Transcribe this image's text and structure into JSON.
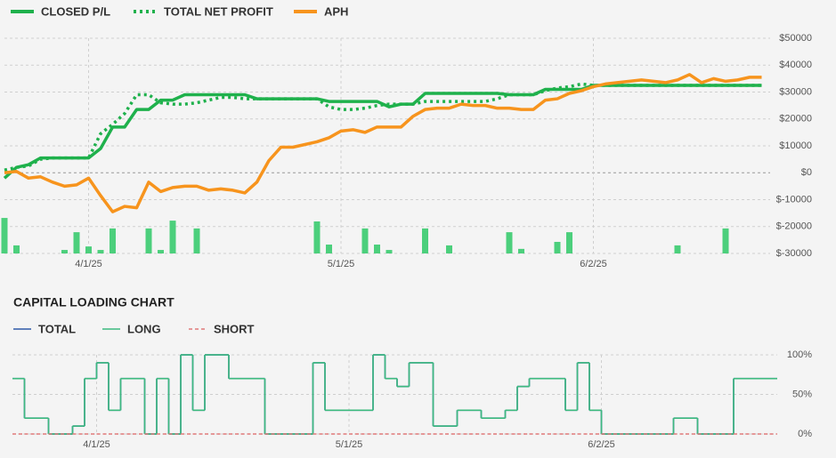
{
  "chart_data": [
    {
      "type": "line",
      "categories": [
        null,
        null,
        null,
        null,
        null,
        null,
        null,
        "4/1/25",
        null,
        null,
        null,
        null,
        null,
        null,
        null,
        null,
        null,
        null,
        null,
        null,
        null,
        null,
        null,
        null,
        null,
        null,
        null,
        null,
        "5/1/25",
        null,
        null,
        null,
        null,
        null,
        null,
        null,
        null,
        null,
        null,
        null,
        null,
        null,
        null,
        null,
        null,
        null,
        null,
        null,
        null,
        "6/2/25",
        null,
        null,
        null,
        null,
        null,
        null,
        null,
        null,
        null,
        null,
        null,
        null,
        null,
        null
      ],
      "series": [
        {
          "type": "bar",
          "color": "#4ccf7c",
          "values": [
            -16800,
            -27000,
            null,
            null,
            null,
            -28700,
            -22100,
            -27400,
            -28700,
            -20700,
            null,
            null,
            -20700,
            -28700,
            -17800,
            null,
            -20700,
            null,
            null,
            null,
            null,
            null,
            null,
            null,
            null,
            null,
            -18100,
            -26700,
            null,
            null,
            -20700,
            -26700,
            -28700,
            null,
            null,
            -20700,
            null,
            -27000,
            null,
            null,
            null,
            null,
            -22100,
            -28300,
            null,
            null,
            -25700,
            -22100,
            null,
            null,
            null,
            null,
            null,
            null,
            null,
            null,
            -27000,
            null,
            null,
            null,
            -20700,
            null,
            null,
            null
          ]
        },
        {
          "name": "CLOSED P/L",
          "color": "#1fb14c",
          "style": "solid",
          "values": [
            -2000,
            2000,
            3000,
            5500,
            5500,
            5500,
            5500,
            5500,
            9000,
            17000,
            17000,
            23500,
            23500,
            27000,
            27000,
            29000,
            29000,
            29000,
            29000,
            29000,
            29000,
            27500,
            27500,
            27500,
            27500,
            27500,
            27500,
            26500,
            26500,
            26500,
            26500,
            26500,
            24500,
            25500,
            25500,
            29500,
            29500,
            29500,
            29500,
            29500,
            29500,
            29500,
            29000,
            29000,
            29000,
            31000,
            31000,
            31000,
            31000,
            32500,
            32500,
            32500,
            32500,
            32500,
            32500,
            32500,
            32500,
            32500,
            32500,
            32500,
            32500,
            32500,
            32500,
            32500
          ]
        },
        {
          "name": "TOTAL NET PROFIT",
          "color": "#1fb14c",
          "style": "dotted",
          "values": [
            1000,
            2000,
            2500,
            5000,
            5500,
            5500,
            5500,
            5500,
            14500,
            18000,
            22000,
            29000,
            29000,
            26000,
            25500,
            25500,
            26000,
            27000,
            28000,
            28000,
            27500,
            27500,
            27500,
            27500,
            27500,
            27500,
            27500,
            24500,
            23500,
            23500,
            24000,
            25000,
            25500,
            25500,
            25500,
            26500,
            26500,
            26500,
            26500,
            26500,
            26500,
            27500,
            29000,
            29000,
            29000,
            30500,
            31500,
            32000,
            33000,
            32500,
            32500,
            32500,
            32500,
            32500,
            32500,
            32500,
            32500,
            32500,
            32500,
            32500,
            32500,
            32500,
            32500,
            32500
          ]
        },
        {
          "name": "APH",
          "color": "#f7941d",
          "style": "solid",
          "values": [
            0,
            500,
            -2000,
            -1500,
            -3500,
            -5000,
            -4500,
            -2000,
            -8500,
            -14500,
            -12500,
            -13000,
            -3500,
            -7000,
            -5500,
            -5000,
            -5000,
            -6500,
            -6000,
            -6500,
            -7500,
            -3500,
            4500,
            9500,
            9500,
            10500,
            11500,
            13000,
            15500,
            16000,
            15000,
            17000,
            17000,
            17000,
            21000,
            23500,
            24000,
            24000,
            25500,
            25000,
            25000,
            24000,
            24000,
            23500,
            23500,
            27000,
            27500,
            29500,
            30500,
            32000,
            33000,
            33500,
            34000,
            34500,
            34000,
            33500,
            34500,
            36500,
            33500,
            35000,
            34000,
            34500,
            35500,
            35500
          ]
        }
      ],
      "ylim": [
        -30000,
        50000
      ],
      "yticks": [
        {
          "value": 50000,
          "label": "$50000"
        },
        {
          "value": 40000,
          "label": "$40000"
        },
        {
          "value": 30000,
          "label": "$30000"
        },
        {
          "value": 20000,
          "label": "$20000"
        },
        {
          "value": 10000,
          "label": "$10000"
        },
        {
          "value": 0,
          "label": "$0"
        },
        {
          "value": -10000,
          "label": "$-10000"
        },
        {
          "value": -20000,
          "label": "$-20000"
        },
        {
          "value": -30000,
          "label": "$-30000"
        }
      ],
      "grid": true,
      "legend": "top"
    },
    {
      "type": "step",
      "title": "CAPITAL LOADING CHART",
      "categories": [
        null,
        null,
        null,
        null,
        null,
        null,
        null,
        "4/1/25",
        null,
        null,
        null,
        null,
        null,
        null,
        null,
        null,
        null,
        null,
        null,
        null,
        null,
        null,
        null,
        null,
        null,
        null,
        null,
        null,
        "5/1/25",
        null,
        null,
        null,
        null,
        null,
        null,
        null,
        null,
        null,
        null,
        null,
        null,
        null,
        null,
        null,
        null,
        null,
        null,
        null,
        null,
        "6/2/25",
        null,
        null,
        null,
        null,
        null,
        null,
        null,
        null,
        null,
        null,
        null,
        null,
        null,
        null
      ],
      "series": [
        {
          "name": "TOTAL",
          "color": "#2e5aa8",
          "style": "solid",
          "values": [
            70,
            20,
            20,
            0,
            0,
            10,
            70,
            90,
            30,
            70,
            70,
            0,
            70,
            0,
            100,
            30,
            100,
            100,
            70,
            70,
            70,
            0,
            0,
            0,
            0,
            90,
            30,
            30,
            30,
            30,
            100,
            70,
            60,
            90,
            90,
            10,
            10,
            30,
            30,
            20,
            20,
            30,
            60,
            70,
            70,
            70,
            30,
            90,
            30,
            0,
            0,
            0,
            0,
            0,
            0,
            20,
            20,
            0,
            0,
            0,
            70,
            70,
            70,
            70
          ]
        },
        {
          "name": "LONG",
          "color": "#3dba7e",
          "style": "solid",
          "values": [
            70,
            20,
            20,
            0,
            0,
            10,
            70,
            90,
            30,
            70,
            70,
            0,
            70,
            0,
            100,
            30,
            100,
            100,
            70,
            70,
            70,
            0,
            0,
            0,
            0,
            90,
            30,
            30,
            30,
            30,
            100,
            70,
            60,
            90,
            90,
            10,
            10,
            30,
            30,
            20,
            20,
            30,
            60,
            70,
            70,
            70,
            30,
            90,
            30,
            0,
            0,
            0,
            0,
            0,
            0,
            20,
            20,
            0,
            0,
            0,
            70,
            70,
            70,
            70
          ]
        },
        {
          "name": "SHORT",
          "color": "#e07a7a",
          "style": "dashed",
          "values": [
            0,
            0,
            0,
            0,
            0,
            0,
            0,
            0,
            0,
            0,
            0,
            0,
            0,
            0,
            0,
            0,
            0,
            0,
            0,
            0,
            0,
            0,
            0,
            0,
            0,
            0,
            0,
            0,
            0,
            0,
            0,
            0,
            0,
            0,
            0,
            0,
            0,
            0,
            0,
            0,
            0,
            0,
            0,
            0,
            0,
            0,
            0,
            0,
            0,
            0,
            0,
            0,
            0,
            0,
            0,
            0,
            0,
            0,
            0,
            0,
            0,
            0,
            0,
            0
          ]
        }
      ],
      "ylim": [
        0,
        100
      ],
      "yticks": [
        {
          "value": 100,
          "label": "100%"
        },
        {
          "value": 50,
          "label": "50%"
        },
        {
          "value": 0,
          "label": "0%"
        }
      ],
      "grid": true,
      "legend": "top"
    }
  ]
}
